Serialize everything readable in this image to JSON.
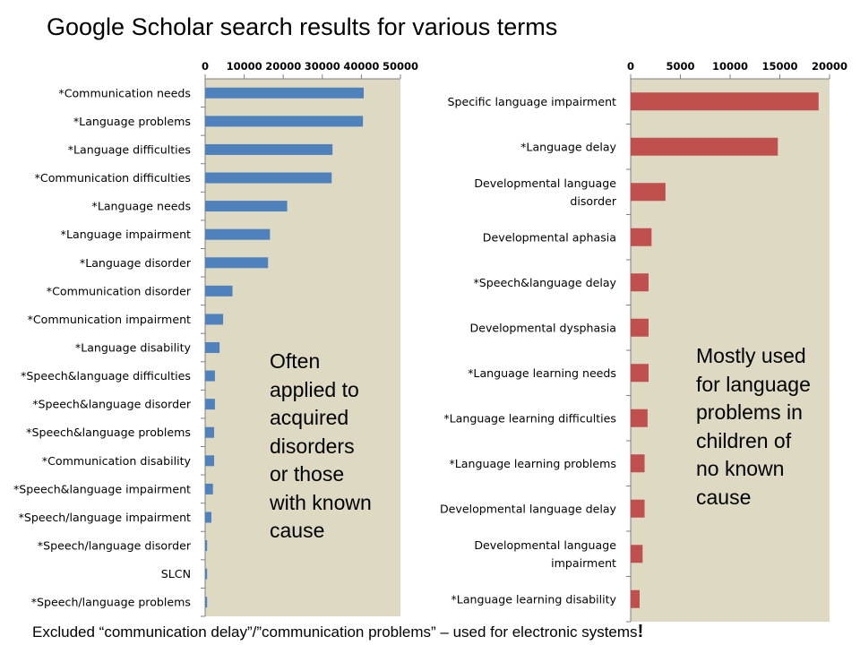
{
  "slide": {
    "title": "Google Scholar search results for various terms",
    "footer_text": "Excluded “communication delay”/”communication problems” – used for electronic systems",
    "footer_bang": "!"
  },
  "annotations": {
    "left": "Often\napplied to\nacquired\ndisorders\nor those\nwith known\ncause",
    "right": "Mostly used\nfor language\nproblems in\nchildren of\nno known\ncause"
  },
  "colors": {
    "plot_background": "#ddd9c3",
    "left_bars": "#4f81bd",
    "right_bars": "#c0504d"
  },
  "chart_data": [
    {
      "type": "bar",
      "orientation": "horizontal",
      "x_axis_position": "top",
      "xlim": [
        0,
        50000
      ],
      "xticks": [
        0,
        10000,
        20000,
        30000,
        40000,
        50000
      ],
      "categories": [
        "*Communication needs",
        "*Language problems",
        "*Language difficulties",
        "*Communication difficulties",
        "*Language needs",
        "*Language impairment",
        "*Language disorder",
        "*Communication disorder",
        "*Communication impairment",
        "*Language disability",
        "*Speech&language difficulties",
        "*Speech&language disorder",
        "*Speech&language problems",
        "*Communication disability",
        "*Speech&language impairment",
        "*Speech/language impairment",
        "*Speech/language disorder",
        "SLCN",
        "*Speech/language problems"
      ],
      "values": [
        40600,
        40400,
        32600,
        32400,
        21000,
        16600,
        16100,
        7000,
        4600,
        3700,
        2500,
        2500,
        2300,
        2300,
        2000,
        1600,
        500,
        500,
        500
      ]
    },
    {
      "type": "bar",
      "orientation": "horizontal",
      "x_axis_position": "top",
      "xlim": [
        0,
        20000
      ],
      "xticks": [
        0,
        5000,
        10000,
        15000,
        20000
      ],
      "categories": [
        [
          "Specific language impairment"
        ],
        [
          "*Language delay"
        ],
        [
          "Developmental language",
          "disorder"
        ],
        [
          "Developmental aphasia"
        ],
        [
          "*Speech&language delay"
        ],
        [
          "Developmental dysphasia"
        ],
        [
          "*Language learning needs"
        ],
        [
          "*Language learning difficulties"
        ],
        [
          "*Language learning problems"
        ],
        [
          "Developmental language delay"
        ],
        [
          "Developmental language",
          "impairment"
        ],
        [
          "*Language learning disability"
        ]
      ],
      "values": [
        18900,
        14800,
        3500,
        2100,
        1800,
        1800,
        1800,
        1700,
        1400,
        1400,
        1200,
        900
      ]
    }
  ]
}
